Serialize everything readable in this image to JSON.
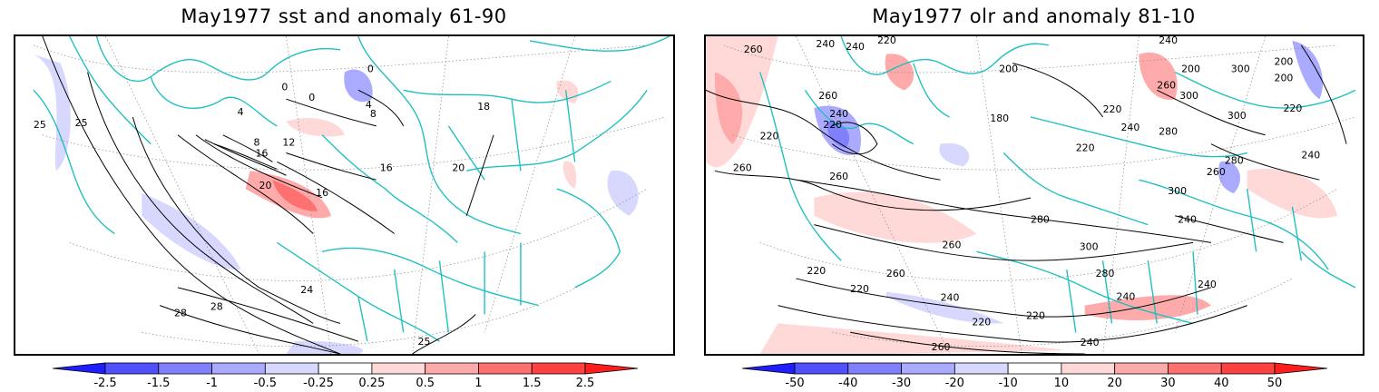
{
  "panels": [
    {
      "title": "May1977 sst and anomaly 61-90",
      "colorbar": {
        "labels": [
          "-2.5",
          "-1.5",
          "-1",
          "-0.5",
          "-0.25",
          "0.25",
          "0.5",
          "1",
          "1.5",
          "2.5"
        ],
        "colors": [
          "#1e1eff",
          "#5050ff",
          "#8080ff",
          "#aaaaff",
          "#d8d8ff",
          "#ffffff",
          "#ffd8d8",
          "#ffaaaa",
          "#ff7070",
          "#ff4040",
          "#ff1e1e"
        ]
      },
      "contour_labels": [
        "0",
        "0",
        "0",
        "4",
        "4",
        "8",
        "8",
        "12",
        "16",
        "16",
        "16",
        "18",
        "20",
        "20",
        "24",
        "25",
        "25",
        "28",
        "28",
        "25"
      ]
    },
    {
      "title": "May1977 olr and anomaly 81-10",
      "colorbar": {
        "labels": [
          "-50",
          "-40",
          "-30",
          "-20",
          "-10",
          "10",
          "20",
          "30",
          "40",
          "50"
        ],
        "colors": [
          "#1e1eff",
          "#5050ff",
          "#8080ff",
          "#aaaaff",
          "#d8d8ff",
          "#ffffff",
          "#ffd8d8",
          "#ffaaaa",
          "#ff7070",
          "#ff4040",
          "#ff1e1e"
        ]
      },
      "contour_labels": [
        "260",
        "240",
        "240",
        "220",
        "200",
        "180",
        "240",
        "200",
        "300",
        "200",
        "260",
        "240",
        "220",
        "260",
        "220",
        "220",
        "220",
        "300",
        "200",
        "300",
        "240",
        "280",
        "260",
        "260",
        "280",
        "220",
        "240",
        "300",
        "260",
        "280",
        "300",
        "240",
        "260",
        "280",
        "220",
        "240",
        "260",
        "220",
        "240",
        "220",
        "240",
        "220",
        "260",
        "240"
      ]
    }
  ],
  "colors": {
    "boundary": "#20c0c0",
    "contour": "#000000",
    "frame": "#000000",
    "grid": "#888888"
  }
}
